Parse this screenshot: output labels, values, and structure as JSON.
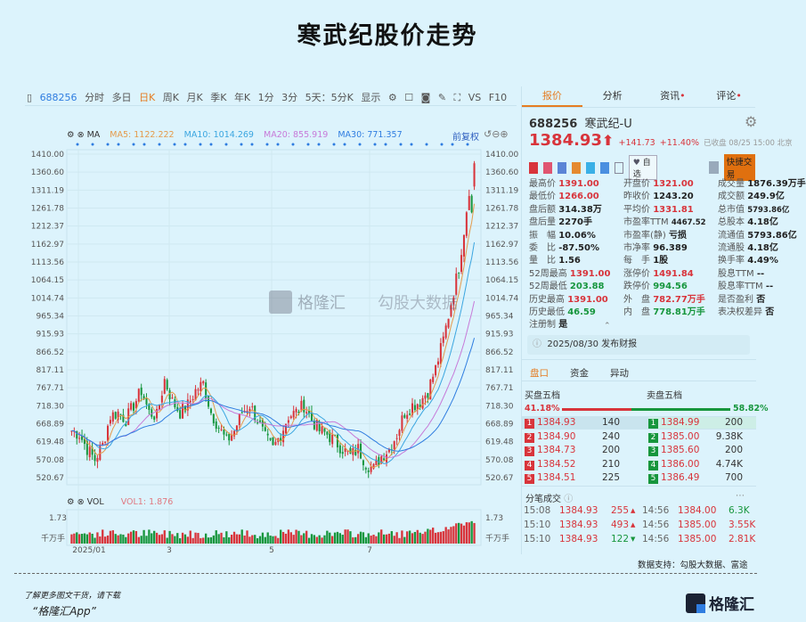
{
  "title": "寒武纪股价走势",
  "toolbar": {
    "code": "688256",
    "items": [
      "分时",
      "多日",
      "日K",
      "周K",
      "月K",
      "季K",
      "年K",
      "1分",
      "3分"
    ],
    "range": "5天：5分K",
    "display": "显示",
    "vs": "VS",
    "f10": "F10"
  },
  "ma": {
    "label": "MA",
    "ma5": "MA5: 1122.222",
    "ma10": "MA10: 1014.269",
    "ma20": "MA20: 855.919",
    "ma30": "MA30: 771.357",
    "adj": "前复权",
    "colors": {
      "ma5": "#e59a4a",
      "ma10": "#3ba6e0",
      "ma20": "#c77ad8",
      "ma30": "#2f7de0"
    }
  },
  "price_axis": [
    "1410.00",
    "1360.60",
    "1311.19",
    "1261.78",
    "1212.37",
    "1162.97",
    "1113.56",
    "1064.15",
    "1014.74",
    "965.34",
    "915.93",
    "866.52",
    "817.11",
    "767.71",
    "718.30",
    "668.89",
    "619.48",
    "570.08",
    "520.67"
  ],
  "price_path": [
    650,
    640,
    600,
    570,
    610,
    690,
    700,
    680,
    720,
    760,
    700,
    690,
    790,
    730,
    700,
    720,
    760,
    780,
    700,
    660,
    620,
    650,
    700,
    720,
    680,
    630,
    600,
    640,
    690,
    700,
    720,
    680,
    650,
    640,
    620,
    600,
    580,
    600,
    560,
    545,
    580,
    600,
    640,
    700,
    720,
    730,
    760,
    820,
    900,
    1000,
    1100,
    1250,
    1385
  ],
  "volume": {
    "label": "VOL",
    "vol1": "VOL1: 1.876",
    "axis_top": "1.73",
    "unit": "千万手"
  },
  "x_labels": [
    "2025/01",
    "3",
    "5",
    "7"
  ],
  "right": {
    "tabs": [
      "报价",
      "分析",
      "资讯",
      "评论"
    ],
    "code": "688256",
    "name": "寒武纪-U",
    "price": "1384.93",
    "change": "+141.73",
    "pct": "+11.40%",
    "status": "已收盘 08/25 15:00 北京",
    "watch": "自选",
    "quick_trade": "快捷交易",
    "stats": [
      [
        [
          "最高价",
          "1391.00",
          "red"
        ],
        [
          "开盘价",
          "1321.00",
          "red"
        ],
        [
          "成交量",
          "1876.39万手",
          "v"
        ]
      ],
      [
        [
          "最低价",
          "1266.00",
          "red"
        ],
        [
          "昨收价",
          "1243.20",
          "v0"
        ],
        [
          "成交额",
          "249.9亿",
          "v"
        ]
      ],
      [
        [
          "盘后额",
          "314.38万",
          "v"
        ],
        [
          "平均价",
          "1331.81",
          "red"
        ],
        [
          "总市值",
          "5793.86亿",
          "vs"
        ]
      ],
      [
        [
          "盘后量",
          "2270手",
          "v"
        ],
        [
          "市盈率TTM",
          "4467.52",
          "vs"
        ],
        [
          "总股本",
          "4.18亿",
          "v"
        ]
      ],
      [
        [
          "振　幅",
          "10.06%",
          "v"
        ],
        [
          "市盈率(静)",
          "亏损",
          "v"
        ],
        [
          "流通值",
          "5793.86亿",
          "v"
        ]
      ],
      [
        [
          "委　比",
          "-87.50%",
          "v"
        ],
        [
          "市净率",
          "96.389",
          "v"
        ],
        [
          "流通股",
          "4.18亿",
          "v"
        ]
      ],
      [
        [
          "量　比",
          "1.56",
          "v"
        ],
        [
          "每　手",
          "1股",
          "v"
        ],
        [
          "换手率",
          "4.49%",
          "v"
        ]
      ],
      [
        [
          "52周最高",
          "1391.00",
          "red"
        ],
        [
          "涨停价",
          "1491.84",
          "red"
        ],
        [
          "股息TTM",
          "--",
          "v"
        ]
      ],
      [
        [
          "52周最低",
          "203.88",
          "grn"
        ],
        [
          "跌停价",
          "994.56",
          "grn"
        ],
        [
          "股息率TTM",
          "--",
          "v"
        ]
      ],
      [
        [
          "历史最高",
          "1391.00",
          "red"
        ],
        [
          "外　盘",
          "782.77万手",
          "red"
        ],
        [
          "是否盈利",
          "否",
          "v"
        ]
      ],
      [
        [
          "历史最低",
          "46.59",
          "grn"
        ],
        [
          "内　盘",
          "778.81万手",
          "grn"
        ],
        [
          "表决权差异",
          "否",
          "v"
        ]
      ],
      [
        [
          "注册制",
          "是",
          "v"
        ]
      ]
    ],
    "notice": "2025/08/30  发布财报",
    "subtabs": [
      "盘口",
      "资金",
      "异动"
    ],
    "bid_title": "买盘五档",
    "ask_title": "卖盘五档",
    "bid_pct": "41.18%",
    "ask_pct": "58.82%",
    "bid_ratio": 0.4118,
    "bids": [
      [
        "1",
        "1384.93",
        "140"
      ],
      [
        "2",
        "1384.90",
        "240"
      ],
      [
        "3",
        "1384.73",
        "200"
      ],
      [
        "4",
        "1384.52",
        "210"
      ],
      [
        "5",
        "1384.51",
        "225"
      ]
    ],
    "asks": [
      [
        "1",
        "1384.99",
        "200"
      ],
      [
        "2",
        "1385.00",
        "9.38K"
      ],
      [
        "3",
        "1385.60",
        "200"
      ],
      [
        "4",
        "1386.00",
        "4.74K"
      ],
      [
        "5",
        "1386.49",
        "700"
      ]
    ],
    "trades_title": "分笔成交",
    "trades": [
      [
        "15:08",
        "1384.93",
        "255",
        "up",
        "14:56",
        "1384.00",
        "6.3K",
        "grn"
      ],
      [
        "15:10",
        "1384.93",
        "493",
        "up",
        "14:56",
        "1385.00",
        "3.55K",
        "red"
      ],
      [
        "15:10",
        "1384.93",
        "122",
        "down",
        "14:56",
        "1385.00",
        "2.81K",
        "red"
      ]
    ]
  },
  "footer": {
    "source": "数据支持：勾股大数据、富途",
    "promo": "了解更多图文干货，请下载",
    "app": "“格隆汇App”",
    "logo": "格隆汇",
    "watermark1": "格隆汇",
    "watermark2": "勾股大数据"
  }
}
